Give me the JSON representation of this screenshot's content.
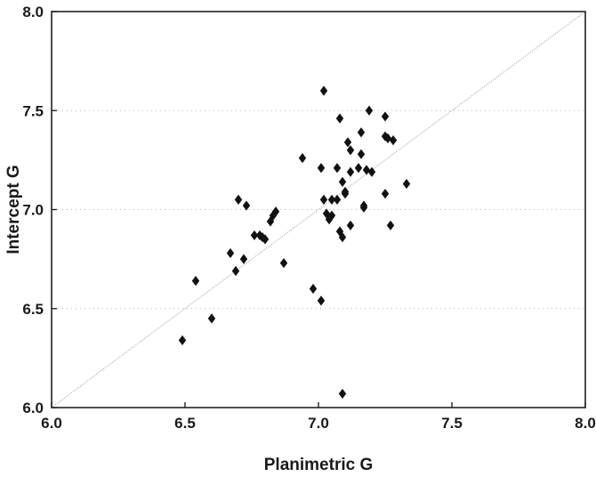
{
  "chart_data": {
    "type": "scatter",
    "title": "",
    "xlabel": "Planimetric G",
    "ylabel": "Intercept G",
    "xlim": [
      6.0,
      8.0
    ],
    "ylim": [
      6.0,
      8.0
    ],
    "x_ticks": [
      "6.0",
      "6.5",
      "7.0",
      "7.5",
      "8.0"
    ],
    "y_ticks": [
      "6.0",
      "6.5",
      "7.0",
      "7.5",
      "8.0"
    ],
    "grid": "faint dotted horizontal lines",
    "reference_line": {
      "label": "",
      "from": [
        6.0,
        6.0
      ],
      "to": [
        8.0,
        8.0
      ],
      "style": "dotted"
    },
    "marker": "diamond",
    "colors": {
      "marker": "#111111",
      "axis": "#222222",
      "grid": "#b5b5b5",
      "reference": "#9a9a9a"
    },
    "points": [
      {
        "x": 6.49,
        "y": 6.34
      },
      {
        "x": 6.54,
        "y": 6.64
      },
      {
        "x": 6.6,
        "y": 6.45
      },
      {
        "x": 6.67,
        "y": 6.78
      },
      {
        "x": 6.69,
        "y": 6.69
      },
      {
        "x": 6.72,
        "y": 6.75
      },
      {
        "x": 6.7,
        "y": 7.05
      },
      {
        "x": 6.73,
        "y": 7.02
      },
      {
        "x": 6.76,
        "y": 6.87
      },
      {
        "x": 6.78,
        "y": 6.87
      },
      {
        "x": 6.79,
        "y": 6.86
      },
      {
        "x": 6.8,
        "y": 6.85
      },
      {
        "x": 6.82,
        "y": 6.94
      },
      {
        "x": 6.83,
        "y": 6.97
      },
      {
        "x": 6.84,
        "y": 6.99
      },
      {
        "x": 6.87,
        "y": 6.73
      },
      {
        "x": 6.94,
        "y": 7.26
      },
      {
        "x": 6.98,
        "y": 6.6
      },
      {
        "x": 7.01,
        "y": 6.54
      },
      {
        "x": 7.01,
        "y": 7.21
      },
      {
        "x": 7.02,
        "y": 7.6
      },
      {
        "x": 7.02,
        "y": 7.05
      },
      {
        "x": 7.03,
        "y": 6.98
      },
      {
        "x": 7.04,
        "y": 6.95
      },
      {
        "x": 7.05,
        "y": 6.97
      },
      {
        "x": 7.05,
        "y": 7.05
      },
      {
        "x": 7.07,
        "y": 7.21
      },
      {
        "x": 7.07,
        "y": 7.05
      },
      {
        "x": 7.08,
        "y": 7.46
      },
      {
        "x": 7.08,
        "y": 6.89
      },
      {
        "x": 7.09,
        "y": 6.86
      },
      {
        "x": 7.09,
        "y": 7.14
      },
      {
        "x": 7.1,
        "y": 7.09
      },
      {
        "x": 7.1,
        "y": 7.08
      },
      {
        "x": 7.11,
        "y": 7.34
      },
      {
        "x": 7.12,
        "y": 7.3
      },
      {
        "x": 7.12,
        "y": 7.19
      },
      {
        "x": 7.12,
        "y": 6.92
      },
      {
        "x": 7.15,
        "y": 7.21
      },
      {
        "x": 7.16,
        "y": 7.28
      },
      {
        "x": 7.16,
        "y": 7.39
      },
      {
        "x": 7.17,
        "y": 7.02
      },
      {
        "x": 7.17,
        "y": 7.01
      },
      {
        "x": 7.18,
        "y": 7.2
      },
      {
        "x": 7.19,
        "y": 7.5
      },
      {
        "x": 7.2,
        "y": 7.19
      },
      {
        "x": 7.25,
        "y": 7.47
      },
      {
        "x": 7.25,
        "y": 7.08
      },
      {
        "x": 7.25,
        "y": 7.37
      },
      {
        "x": 7.26,
        "y": 7.36
      },
      {
        "x": 7.27,
        "y": 6.92
      },
      {
        "x": 7.28,
        "y": 7.35
      },
      {
        "x": 7.33,
        "y": 7.13
      },
      {
        "x": 7.09,
        "y": 6.07
      }
    ]
  }
}
